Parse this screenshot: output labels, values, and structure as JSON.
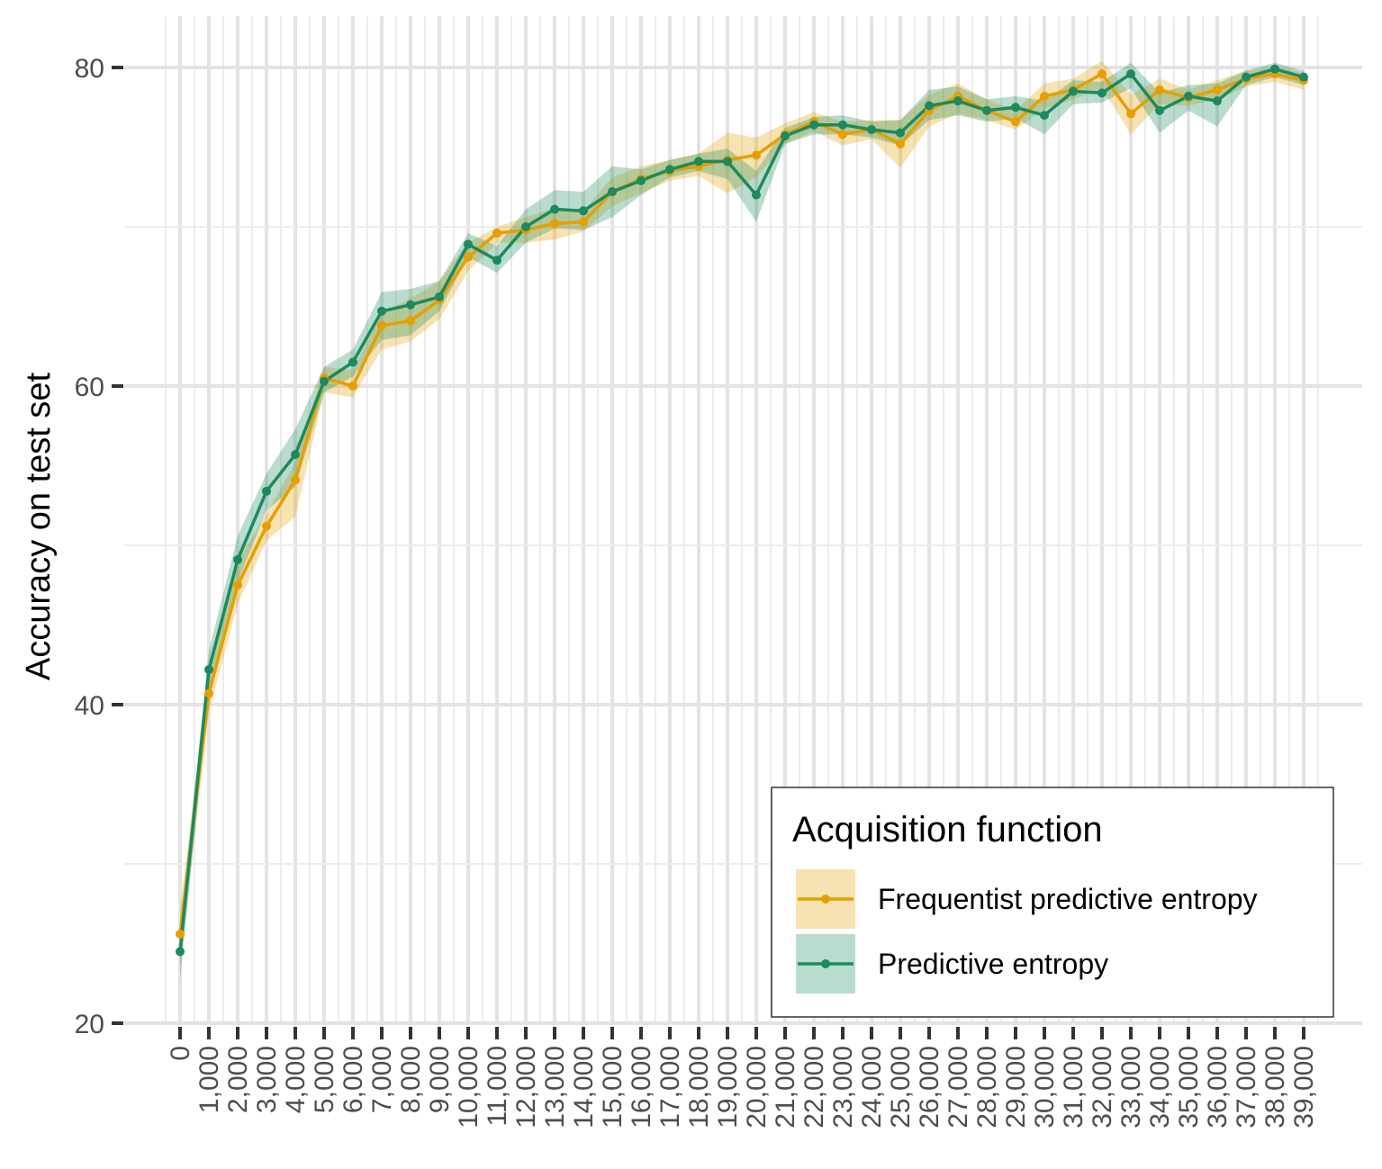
{
  "chart_data": {
    "type": "line",
    "title": "",
    "xlabel": "",
    "ylabel": "Accuracy on test set",
    "ylim": [
      20,
      82
    ],
    "y_ticks": [
      20,
      40,
      60,
      80
    ],
    "x_tick_labels": [
      "0",
      "1,000",
      "2,000",
      "3,000",
      "4,000",
      "5,000",
      "6,000",
      "7,000",
      "8,000",
      "9,000",
      "10,000",
      "11,000",
      "12,000",
      "13,000",
      "14,000",
      "15,000",
      "16,000",
      "17,000",
      "18,000",
      "19,000",
      "20,000",
      "21,000",
      "22,000",
      "23,000",
      "24,000",
      "25,000",
      "26,000",
      "27,000",
      "28,000",
      "29,000",
      "30,000",
      "31,000",
      "32,000",
      "33,000",
      "34,000",
      "35,000",
      "36,000",
      "37,000",
      "38,000",
      "39,000"
    ],
    "grid": true,
    "legend_position": "bottom-right",
    "legend_title": "Acquisition function",
    "series": [
      {
        "name": "Frequentist predictive entropy",
        "color": "#E69F00",
        "band_color": "#F5DEB3",
        "values": [
          25.6,
          40.7,
          47.5,
          51.2,
          54.1,
          60.5,
          60.0,
          63.8,
          64.1,
          65.4,
          68.1,
          69.6,
          69.8,
          70.2,
          70.3,
          72.2,
          73.0,
          73.5,
          73.8,
          74.2,
          74.5,
          75.8,
          76.6,
          75.8,
          76.1,
          75.2,
          77.3,
          78.2,
          77.3,
          76.6,
          78.2,
          78.6,
          79.6,
          77.1,
          78.6,
          78.1,
          78.6,
          79.3,
          79.6,
          79.2
        ],
        "lower": [
          23.5,
          39.5,
          46.3,
          50.3,
          51.8,
          59.6,
          59.3,
          62.3,
          62.8,
          64.2,
          67.2,
          69.0,
          69.0,
          69.2,
          69.7,
          71.3,
          72.1,
          72.9,
          73.2,
          72.1,
          73.1,
          75.2,
          76.0,
          75.1,
          75.5,
          73.7,
          76.3,
          77.1,
          76.7,
          76.1,
          77.4,
          78.0,
          78.7,
          75.8,
          77.7,
          77.6,
          78.0,
          78.8,
          79.1,
          78.6
        ],
        "upper": [
          27.2,
          42.0,
          49.0,
          52.0,
          55.2,
          61.2,
          61.0,
          64.6,
          65.5,
          66.6,
          69.0,
          70.0,
          70.6,
          71.2,
          71.0,
          73.1,
          73.8,
          74.2,
          74.6,
          75.9,
          75.6,
          76.5,
          77.2,
          76.6,
          76.7,
          76.7,
          78.3,
          79.0,
          78.0,
          77.3,
          79.0,
          79.3,
          80.4,
          78.3,
          79.3,
          78.6,
          79.2,
          79.8,
          80.0,
          79.7
        ]
      },
      {
        "name": "Predictive entropy",
        "color": "#1B8A5E",
        "band_color": "#B7DECF",
        "values": [
          24.5,
          42.2,
          49.1,
          53.4,
          55.7,
          60.3,
          61.5,
          64.7,
          65.1,
          65.6,
          68.9,
          67.9,
          70.0,
          71.1,
          71.0,
          72.2,
          72.9,
          73.6,
          74.1,
          74.1,
          72.0,
          75.7,
          76.4,
          76.4,
          76.1,
          75.9,
          77.6,
          77.9,
          77.3,
          77.5,
          77.0,
          78.5,
          78.4,
          79.6,
          77.3,
          78.2,
          77.9,
          79.4,
          79.9,
          79.4
        ],
        "lower": [
          22.7,
          40.8,
          47.7,
          52.2,
          53.7,
          59.6,
          60.6,
          62.9,
          63.2,
          64.7,
          68.1,
          67.1,
          69.0,
          69.9,
          69.8,
          70.6,
          72.0,
          73.1,
          73.5,
          73.0,
          70.3,
          75.2,
          75.8,
          75.8,
          75.6,
          75.1,
          76.7,
          77.0,
          76.6,
          76.8,
          75.8,
          77.7,
          77.8,
          78.7,
          75.9,
          77.3,
          76.3,
          78.9,
          79.4,
          78.9
        ],
        "upper": [
          25.9,
          43.4,
          50.6,
          54.5,
          57.3,
          61.2,
          62.3,
          65.9,
          66.1,
          66.6,
          69.6,
          68.8,
          71.1,
          72.3,
          72.2,
          73.8,
          73.6,
          74.2,
          74.6,
          74.9,
          73.5,
          76.2,
          76.9,
          77.0,
          76.6,
          76.7,
          78.6,
          78.8,
          78.0,
          78.2,
          77.9,
          79.2,
          79.1,
          80.3,
          78.4,
          78.9,
          79.0,
          79.8,
          80.3,
          79.8
        ]
      }
    ]
  }
}
